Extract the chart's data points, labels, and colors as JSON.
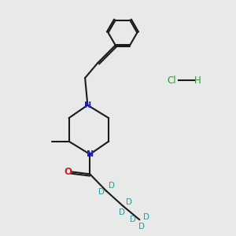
{
  "background_color": "#e8eaea",
  "bond_color": "#1a1a1a",
  "nitrogen_color": "#2020cc",
  "oxygen_color": "#cc2020",
  "deuterium_color": "#20a0a0",
  "cl_color": "#20a020",
  "h_color": "#20a020",
  "figsize": [
    3.0,
    3.0
  ],
  "dpi": 100,
  "xlim": [
    0,
    10
  ],
  "ylim": [
    0,
    10
  ]
}
